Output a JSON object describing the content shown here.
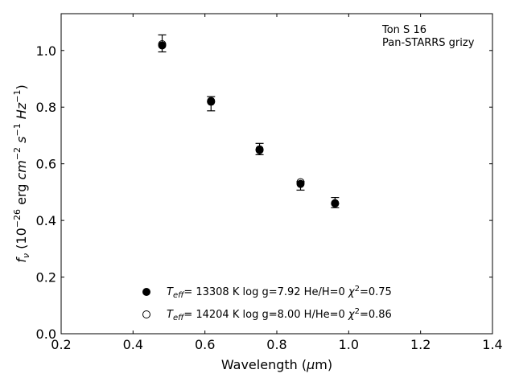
{
  "chart_data": {
    "type": "scatter",
    "annotation_lines": [
      "Ton S 16",
      "Pan-STARRS grizy"
    ],
    "xlabel": {
      "main": "Wavelength (",
      "mu": "μ",
      "rest": "m)"
    },
    "ylabel": {
      "f": "f",
      "nu": "ν",
      "p1": " (10",
      "e1": "−26",
      "p2": " erg ",
      "cm": "cm",
      "e2": "−2",
      "s": "s",
      "e3": "−1",
      "hz": "Hz",
      "e4": "−1",
      "p3": ")"
    },
    "xlim": [
      0.2,
      1.4
    ],
    "ylim": [
      0.0,
      1.13
    ],
    "xticks": [
      "0.2",
      "0.4",
      "0.6",
      "0.8",
      "1.0",
      "1.2",
      "1.4"
    ],
    "yticks": [
      "0.0",
      "0.2",
      "0.4",
      "0.6",
      "0.8",
      "1.0"
    ],
    "observed": {
      "x": [
        0.481,
        0.617,
        0.752,
        0.866,
        0.962
      ],
      "y": [
        1.025,
        0.812,
        0.652,
        0.522,
        0.463
      ],
      "err": [
        0.03,
        0.025,
        0.02,
        0.015,
        0.018
      ]
    },
    "series": [
      {
        "marker": "filled",
        "x": [
          0.481,
          0.617,
          0.752,
          0.866,
          0.962
        ],
        "y": [
          1.018,
          0.819,
          0.648,
          0.529,
          0.461
        ],
        "legend": {
          "t": "T",
          "sub": "eff",
          "a": "= 13308 K  log g=7.92  He/H=0  ",
          "chi": "χ",
          "sup": "2",
          "b": "=0.75"
        }
      },
      {
        "marker": "open",
        "x": [
          0.481,
          0.617,
          0.752,
          0.866,
          0.962
        ],
        "y": [
          1.022,
          0.822,
          0.651,
          0.535,
          0.46
        ],
        "legend": {
          "t": "T",
          "sub": "eff",
          "a": "= 14204 K  log g=8.00  H/He=0  ",
          "chi": "χ",
          "sup": "2",
          "b": "=0.86"
        }
      }
    ]
  }
}
